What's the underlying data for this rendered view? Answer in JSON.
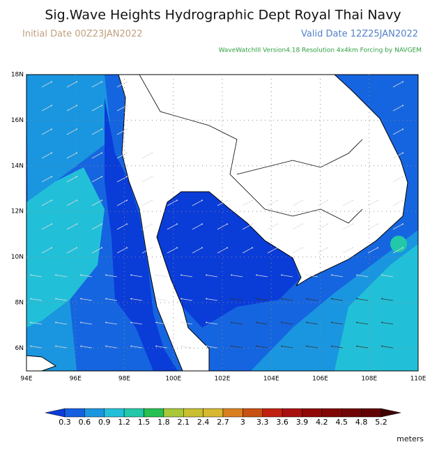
{
  "header": {
    "title": "Sig.Wave Heights Hydrographic Dept Royal Thai Navy",
    "initial_date": "Initial Date 00Z23JAN2022",
    "valid_date": "Valid Date 12Z25JAN2022",
    "model_info": "WaveWatchIII Version4.18 Resolution 4x4km Forcing by NAVGEM"
  },
  "map": {
    "lat_labels": [
      "18N",
      "16N",
      "14N",
      "12N",
      "10N",
      "8N",
      "6N"
    ],
    "lon_labels": [
      "94E",
      "96E",
      "98E",
      "100E",
      "102E",
      "104E",
      "106E",
      "108E",
      "110E"
    ]
  },
  "colorbar": {
    "levels": [
      0.3,
      0.6,
      0.9,
      1.2,
      1.5,
      1.8,
      2.1,
      2.4,
      2.7,
      3,
      3.3,
      3.6,
      3.9,
      4.2,
      4.5,
      4.8,
      5.2
    ],
    "colors": [
      "#0a3cd8",
      "#1560e0",
      "#1a96e0",
      "#22c0d8",
      "#22c8a8",
      "#28c050",
      "#a8c838",
      "#c8c030",
      "#d8b830",
      "#d88020",
      "#c85010",
      "#c02010",
      "#a81010",
      "#900808",
      "#800606",
      "#700404",
      "#600202",
      "#400000"
    ],
    "unit": "meters"
  }
}
